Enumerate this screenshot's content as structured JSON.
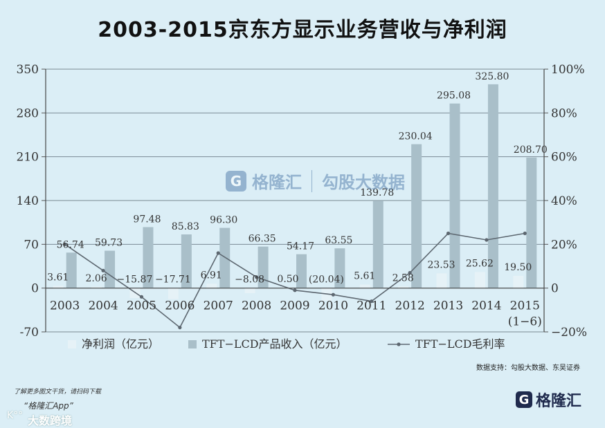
{
  "title": "2003-2015京东方显示业务营收与净利润",
  "chart_data": {
    "type": "bar",
    "categories": [
      "2003",
      "2004",
      "2005",
      "2006",
      "2007",
      "2008",
      "2009",
      "2010",
      "2011",
      "2012",
      "2013",
      "2014",
      "2015"
    ],
    "last_category_sub": "(1−6)",
    "y_left": {
      "min": -70,
      "max": 350,
      "ticks": [
        350,
        280,
        210,
        140,
        70,
        0,
        -70
      ]
    },
    "y_right": {
      "min": -20,
      "max": 100,
      "ticks": [
        "100%",
        "80%",
        "60%",
        "40%",
        "20%",
        "0",
        "−20%"
      ]
    },
    "series": [
      {
        "name": "净利润（亿元）",
        "kind": "bar",
        "color": "#e6f2f7",
        "values": [
          3.61,
          2.06,
          -15.87,
          -17.71,
          6.91,
          -8.08,
          0.5,
          -20.04,
          5.61,
          2.58,
          23.53,
          25.62,
          19.5
        ],
        "labels": [
          "3.61",
          "2.06",
          "−15.87",
          "−17.71",
          "6.91",
          "−8.08",
          "0.50",
          "(20.04)",
          "5.61",
          "2.58",
          "23.53",
          "25.62",
          "19.50"
        ]
      },
      {
        "name": "TFT−LCD产品收入（亿元）",
        "kind": "bar",
        "color": "#a9bfc9",
        "values": [
          56.74,
          59.73,
          97.48,
          85.83,
          96.3,
          66.35,
          54.17,
          63.55,
          139.78,
          230.04,
          295.08,
          325.8,
          208.7
        ],
        "labels": [
          "56.74",
          "59.73",
          "97.48",
          "85.83",
          "96.30",
          "66.35",
          "54.17",
          "63.55",
          "139.78",
          "230.04",
          "295.08",
          "325.80",
          "208.70"
        ]
      },
      {
        "name": "TFT−LCD毛利率",
        "kind": "line",
        "color": "#5d6770",
        "values": [
          20,
          8,
          -4,
          -18,
          16,
          5,
          -1,
          -3,
          -6,
          7,
          25,
          22,
          25
        ]
      }
    ]
  },
  "watermark": {
    "icon": "G",
    "brand": "格隆汇",
    "sub": "勾股大数据"
  },
  "source": "数据支持：勾股大数据、东吴证券",
  "footer": {
    "hint": "了解更多图文干货，请扫码下载",
    "app": "“格隆汇App”",
    "brand_left": "大数跨境",
    "logo_left": "K°°",
    "brand_icon": "G",
    "brand_right": "格隆汇"
  }
}
